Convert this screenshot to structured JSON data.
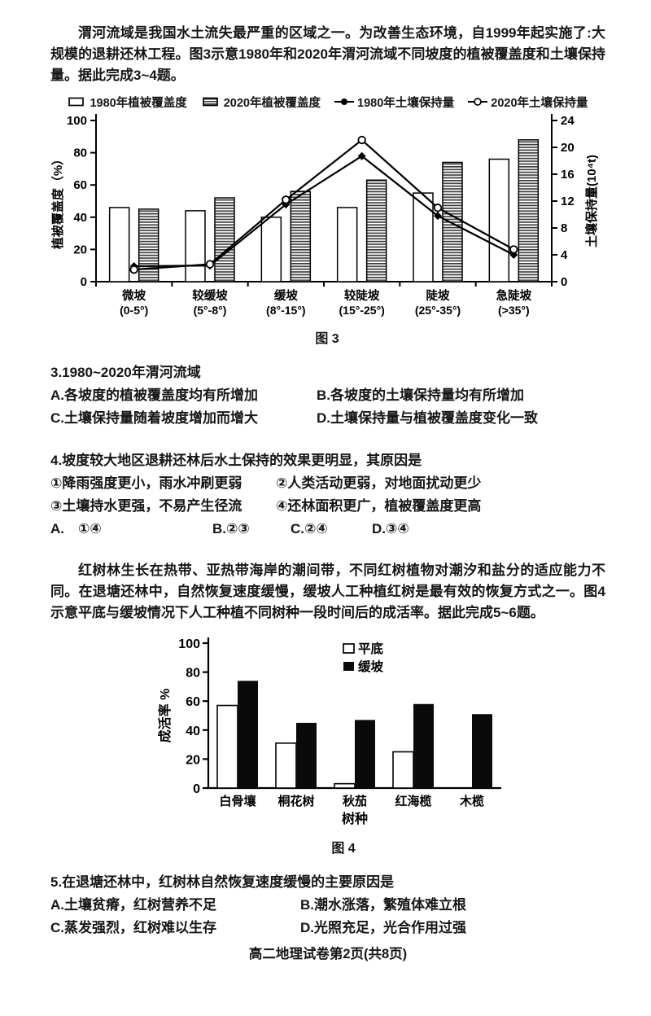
{
  "paragraphs": {
    "p1": "渭河流域是我国水土流失最严重的区域之一。为改善生态环境，自1999年起实施了:大规模的退耕还林工程。图3示意1980年和2020年渭河流域不同坡度的植被覆盖度和土壤保持量。据此完成3~4题。",
    "p2": "红树林生长在热带、亚热带海岸的潮间带，不同红树植物对潮汐和盐分的适应能力不同。在退塘还林中，自然恢复速度缓慢，缓坡人工种植红树是最有效的恢复方式之一。图4示意平底与缓坡情况下人工种植不同树种一段时间后的成活率。据此完成5~6题。"
  },
  "questions": {
    "q3": {
      "stem": "3.1980~2020年渭河流域",
      "options": [
        "A.各坡度的植被覆盖度均有所增加",
        "B.各坡度的土壤保持量均有所增加",
        "C.土壤保持量随着坡度增加而增大",
        "D.土壤保持量与植被覆盖度变化一致"
      ]
    },
    "q4": {
      "stem": "4.坡度较大地区退耕还林后水土保持的效果更明显，其原因是",
      "items": [
        "①降雨强度更小，雨水冲刷更弱",
        "②人类活动更弱，对地面扰动更少",
        "③土壤持水更强，不易产生径流",
        "④还林面积更广，植被覆盖度更高"
      ],
      "choices": [
        "A.　①④",
        "B.②③",
        "C.②④",
        "D.③④"
      ]
    },
    "q5": {
      "stem": "5.在退塘还林中，红树林自然恢复速度缓慢的主要原因是",
      "options": [
        "A.土壤贫瘠，红树营养不足",
        "B.潮水涨落，繁殖体难立根",
        "C.蒸发强烈，红树难以生存",
        "D.光照充足，光合作用过强"
      ]
    }
  },
  "footer": "高二地理试卷第2页(共8页)",
  "chart_data": [
    {
      "type": "bar",
      "subtype": "grouped-bars-with-lines",
      "caption": "图 3",
      "categories": [
        "微坡",
        "较缓坡",
        "缓坡",
        "较陡坡",
        "陡坡",
        "急陡坡"
      ],
      "category_ranges": [
        "(0-5°)",
        "(5°-8°)",
        "(8°-15°)",
        "(15°-25°)",
        "(25°-35°)",
        "(>35°)"
      ],
      "bar_series": [
        {
          "name": "1980年植被覆盖度",
          "style": "white",
          "axis": "left",
          "values": [
            46,
            44,
            40,
            46,
            55,
            76
          ]
        },
        {
          "name": "2020年植被覆盖度",
          "style": "hatched",
          "axis": "left",
          "values": [
            45,
            52,
            56,
            63,
            74,
            88
          ]
        }
      ],
      "line_series": [
        {
          "name": "1980年土壤保持量",
          "marker": "filled",
          "axis": "right",
          "values": [
            2.3,
            2.4,
            11.5,
            18.7,
            9.8,
            4.0
          ]
        },
        {
          "name": "2020年土壤保持量",
          "marker": "open",
          "axis": "right",
          "values": [
            1.8,
            2.6,
            12.2,
            21.1,
            11.0,
            4.8
          ]
        }
      ],
      "left_axis": {
        "label": "植被覆盖度（%）",
        "min": 0,
        "max": 100,
        "ticks": [
          0,
          20,
          40,
          60,
          80,
          100
        ]
      },
      "right_axis": {
        "label": "土壤保持量(10⁴t)",
        "min": 0,
        "max": 24,
        "ticks": [
          0,
          4,
          8,
          12,
          16,
          20,
          24
        ]
      },
      "legend_position": "top",
      "grid": false,
      "colors": {
        "ink": "#000000",
        "bar_fill_white": "#ffffff",
        "hatch_stripe": "#3d3d3d"
      }
    },
    {
      "type": "bar",
      "caption": "图 4",
      "categories": [
        "白骨壤",
        "桐花树",
        "秋茄",
        "红海榄",
        "木榄"
      ],
      "series": [
        {
          "name": "平底",
          "style": "white",
          "values": [
            57,
            31,
            3,
            25,
            0
          ]
        },
        {
          "name": "缓坡",
          "style": "black",
          "values": [
            74,
            45,
            47,
            58,
            51
          ]
        }
      ],
      "y_axis": {
        "label": "成活率 %",
        "min": 0,
        "max": 100,
        "ticks": [
          0,
          20,
          40,
          60,
          80,
          100
        ]
      },
      "xlabel": "树种",
      "legend_position": "top-inside",
      "grid": false,
      "colors": {
        "ink": "#000000",
        "bar_fill_black": "#0a0a0a"
      }
    }
  ]
}
